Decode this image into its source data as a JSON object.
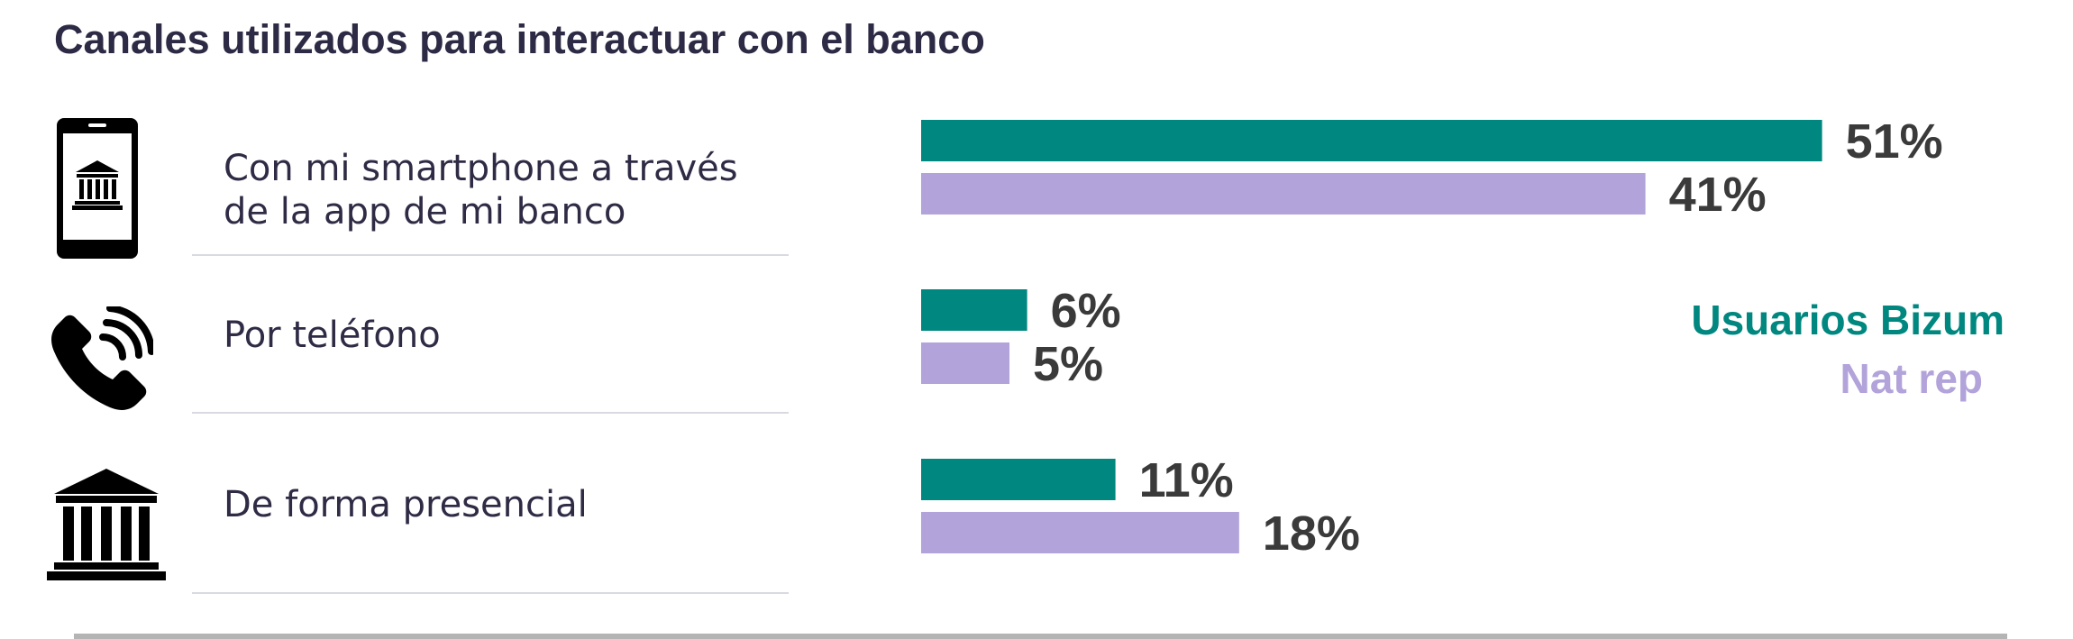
{
  "title": "Canales utilizados para interactuar con el banco",
  "rows": [
    {
      "label_lines": [
        "Con mi smartphone a través",
        "de la app de mi banco"
      ],
      "icon": "smartphone-bank-icon"
    },
    {
      "label_lines": [
        "Por teléfono"
      ],
      "icon": "phone-icon"
    },
    {
      "label_lines": [
        "De forma presencial"
      ],
      "icon": "bank-building-icon"
    }
  ],
  "legend": {
    "usuarios_bizum": "Usuarios Bizum",
    "nat_rep": "Nat rep"
  },
  "colors": {
    "usuarios_bizum": "#00877f",
    "nat_rep": "#b2a3da",
    "title": "#2c2a44",
    "value_label": "#3a3a3a"
  },
  "chart_data": {
    "type": "bar",
    "orientation": "horizontal",
    "categories": [
      "Con mi smartphone a través de la app de mi banco",
      "Por teléfono",
      "De forma presencial"
    ],
    "series": [
      {
        "name": "Usuarios Bizum",
        "values": [
          51,
          6,
          11
        ],
        "labels": [
          "51%",
          "6%",
          "11%"
        ]
      },
      {
        "name": "Nat rep",
        "values": [
          41,
          5,
          18
        ],
        "labels": [
          "41%",
          "5%",
          "18%"
        ]
      }
    ],
    "unit": "%",
    "title": "Canales utilizados para interactuar con el banco",
    "legend_position": "right",
    "grid": false
  }
}
